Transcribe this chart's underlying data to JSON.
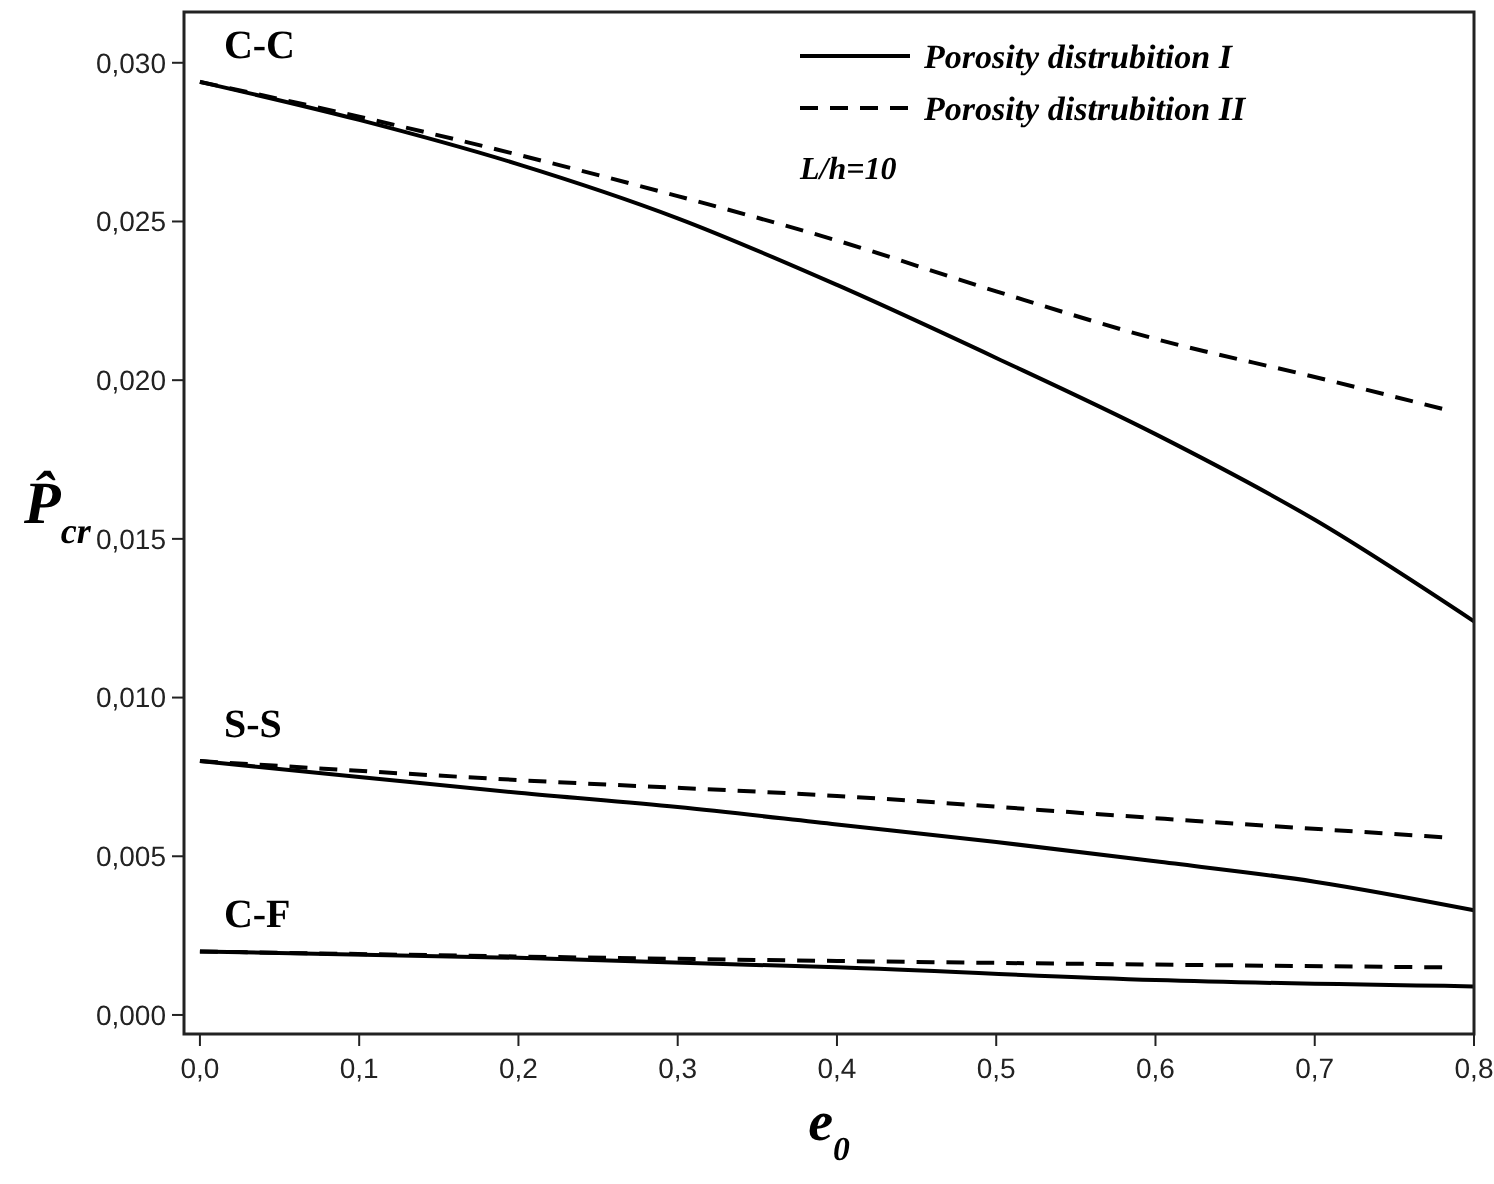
{
  "chart_data": {
    "type": "line",
    "xlabel": "e$_{0}$",
    "ylabel": "P̂$_{cr}$",
    "xlim": [
      -0.01,
      0.8
    ],
    "ylim": [
      -0.0006,
      0.0316
    ],
    "xticks": [
      {
        "value": 0,
        "label": "0,0"
      },
      {
        "value": 0.1,
        "label": "0,1"
      },
      {
        "value": 0.2,
        "label": "0,2"
      },
      {
        "value": 0.3,
        "label": "0,3"
      },
      {
        "value": 0.4,
        "label": "0,4"
      },
      {
        "value": 0.5,
        "label": "0,5"
      },
      {
        "value": 0.6,
        "label": "0,6"
      },
      {
        "value": 0.7,
        "label": "0,7"
      },
      {
        "value": 0.8,
        "label": "0,8"
      }
    ],
    "yticks": [
      {
        "value": 0,
        "label": "0,000"
      },
      {
        "value": 0.005,
        "label": "0,005"
      },
      {
        "value": 0.01,
        "label": "0,010"
      },
      {
        "value": 0.015,
        "label": "0,015"
      },
      {
        "value": 0.02,
        "label": "0,020"
      },
      {
        "value": 0.025,
        "label": "0,025"
      },
      {
        "value": 0.03,
        "label": "0,030"
      }
    ],
    "legend": "top right",
    "grid": false,
    "marker": "none",
    "series": [
      {
        "name": "Porosity distrubition I",
        "color": "#000000",
        "line_style": "solid",
        "x": [
          0,
          0.1,
          0.2,
          0.3,
          0.4,
          0.5,
          0.6,
          0.7,
          0.8
        ],
        "values": [
          0.0294,
          0.0282,
          0.0268,
          0.0251,
          0.023,
          0.0207,
          0.0183,
          0.0156,
          0.0124
        ]
      },
      {
        "name": "Porosity distrubition II",
        "color": "#000000",
        "line_style": "dashed",
        "x": [
          0,
          0.1,
          0.2,
          0.3,
          0.4,
          0.5,
          0.6,
          0.7,
          0.78
        ],
        "values": [
          0.0294,
          0.0283,
          0.0271,
          0.0258,
          0.0244,
          0.0228,
          0.0213,
          0.0201,
          0.0191
        ]
      },
      {
        "color": "#000000",
        "line_style": "solid",
        "x": [
          0,
          0.1,
          0.2,
          0.3,
          0.4,
          0.5,
          0.6,
          0.7,
          0.8
        ],
        "values": [
          0.008,
          0.0075,
          0.007,
          0.00655,
          0.006,
          0.00545,
          0.00484,
          0.0042,
          0.0033
        ]
      },
      {
        "color": "#000000",
        "line_style": "dashed",
        "x": [
          0,
          0.2,
          0.4,
          0.6,
          0.78
        ],
        "values": [
          0.008,
          0.0074,
          0.0069,
          0.0062,
          0.0056
        ]
      },
      {
        "color": "#000000",
        "line_style": "solid",
        "x": [
          0,
          0.2,
          0.4,
          0.6,
          0.8
        ],
        "values": [
          0.002,
          0.0018,
          0.0015,
          0.0011,
          0.0009
        ]
      },
      {
        "color": "#000000",
        "line_style": "dashed",
        "x": [
          0,
          0.4,
          0.78
        ],
        "values": [
          0.002,
          0.0017,
          0.0015
        ]
      }
    ],
    "annotations": [
      "C-C",
      "S-S",
      "C-F",
      "L/h=10"
    ]
  }
}
